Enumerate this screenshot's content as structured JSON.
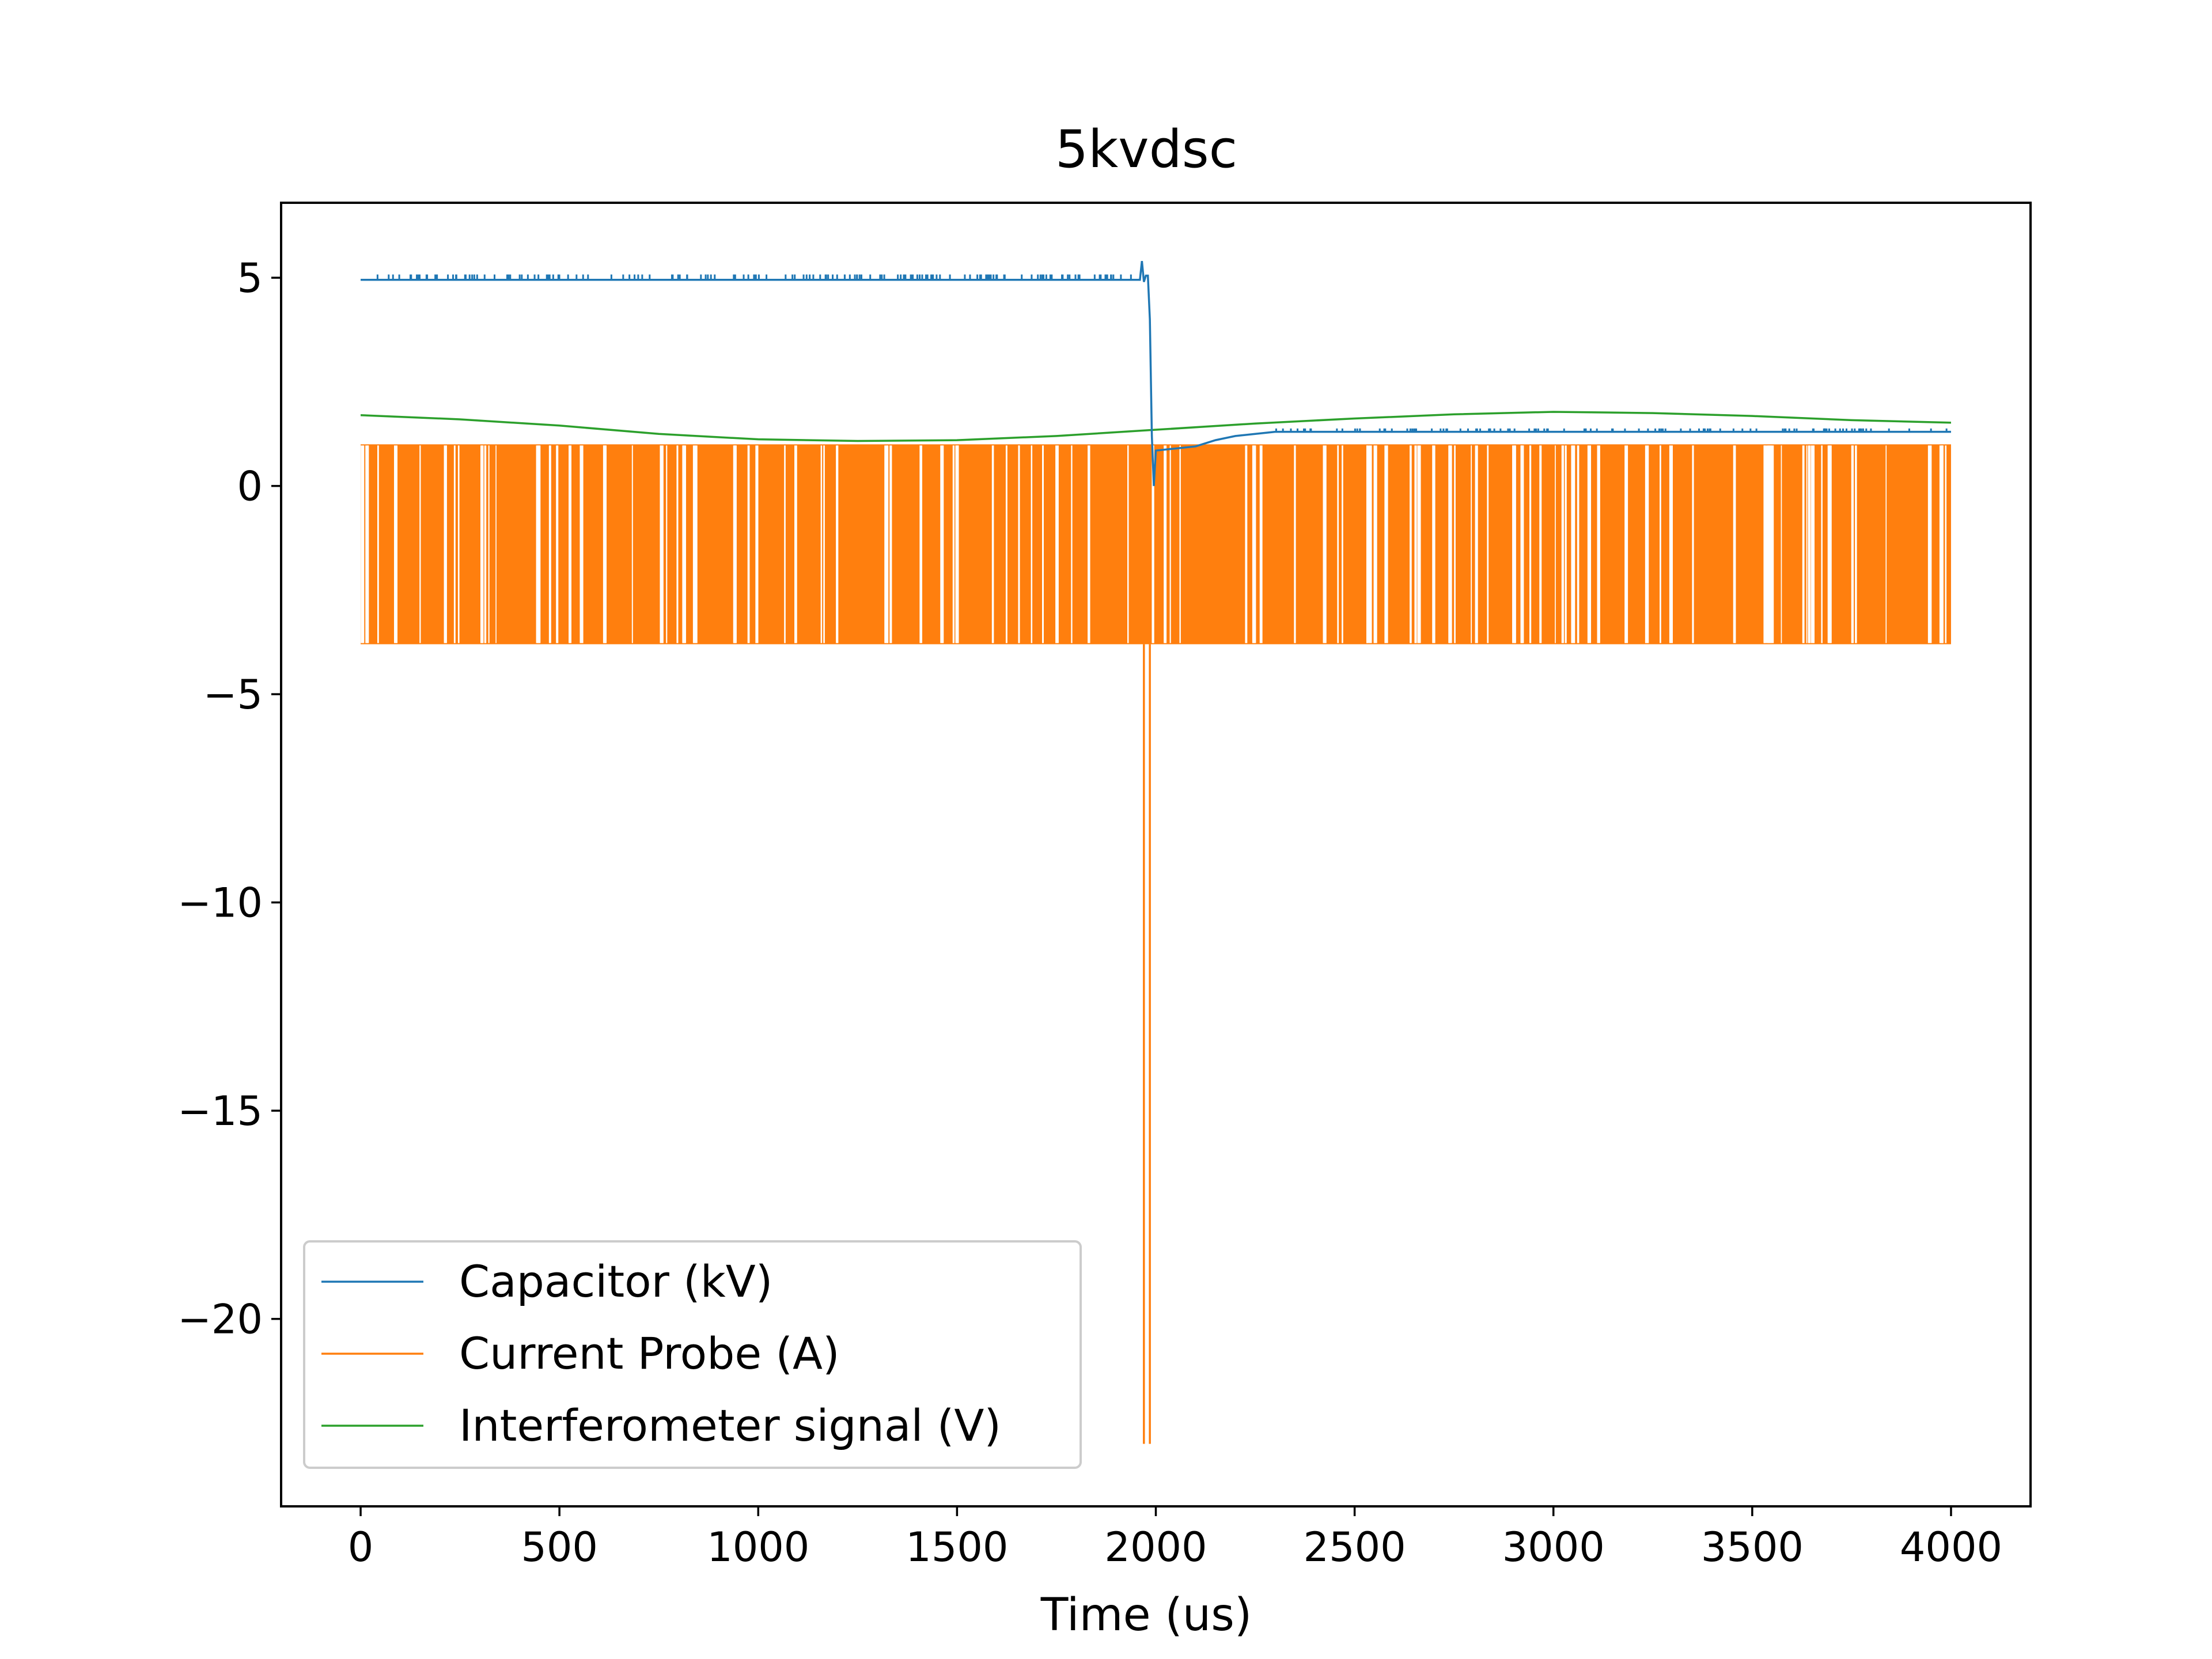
{
  "chart_data": {
    "type": "line",
    "title": "5kvdsc",
    "xlabel": "Time (us)",
    "ylabel": "",
    "xlim": [
      -200,
      4200
    ],
    "ylim": [
      -24.5,
      6.8
    ],
    "x_ticks": [
      0,
      500,
      1000,
      1500,
      2000,
      2500,
      3000,
      3500,
      4000
    ],
    "x_tick_labels": [
      "0",
      "500",
      "1000",
      "1500",
      "2000",
      "2500",
      "3000",
      "3500",
      "4000"
    ],
    "y_ticks": [
      5,
      0,
      -5,
      -10,
      -15,
      -20
    ],
    "y_tick_labels": [
      "5",
      "0",
      "−5",
      "−10",
      "−15",
      "−20"
    ],
    "grid": false,
    "legend_position": "lower-left",
    "series": [
      {
        "name": "Capacitor (kV)",
        "color": "#1f77b4",
        "x": [
          0,
          1960,
          1965,
          1970,
          1975,
          1980,
          1985,
          1990,
          1995,
          2000,
          2050,
          2100,
          2150,
          2200,
          2250,
          2300,
          4000
        ],
        "y": [
          4.95,
          4.95,
          5.4,
          4.9,
          5.05,
          5.05,
          4.0,
          1.2,
          0.0,
          0.85,
          0.9,
          0.95,
          1.1,
          1.2,
          1.25,
          1.3,
          1.3
        ],
        "noise_upper": 5.05,
        "noise_range": [
          0,
          1960
        ]
      },
      {
        "name": "Current Probe (A)",
        "color": "#ff7f0e",
        "band_low": -3.8,
        "band_high": 1.0,
        "x_range": [
          0,
          4000
        ],
        "spikes": [
          {
            "x": 1970,
            "y": -23.0
          },
          {
            "x": 1985,
            "y": -23.0
          }
        ]
      },
      {
        "name": "Interferometer signal (V)",
        "color": "#2ca02c",
        "x": [
          0,
          250,
          500,
          750,
          1000,
          1250,
          1500,
          1750,
          2000,
          2250,
          2500,
          2750,
          3000,
          3250,
          3500,
          3750,
          4000
        ],
        "y": [
          1.7,
          1.6,
          1.45,
          1.25,
          1.12,
          1.08,
          1.1,
          1.2,
          1.35,
          1.5,
          1.62,
          1.72,
          1.78,
          1.75,
          1.68,
          1.58,
          1.52
        ]
      }
    ]
  }
}
